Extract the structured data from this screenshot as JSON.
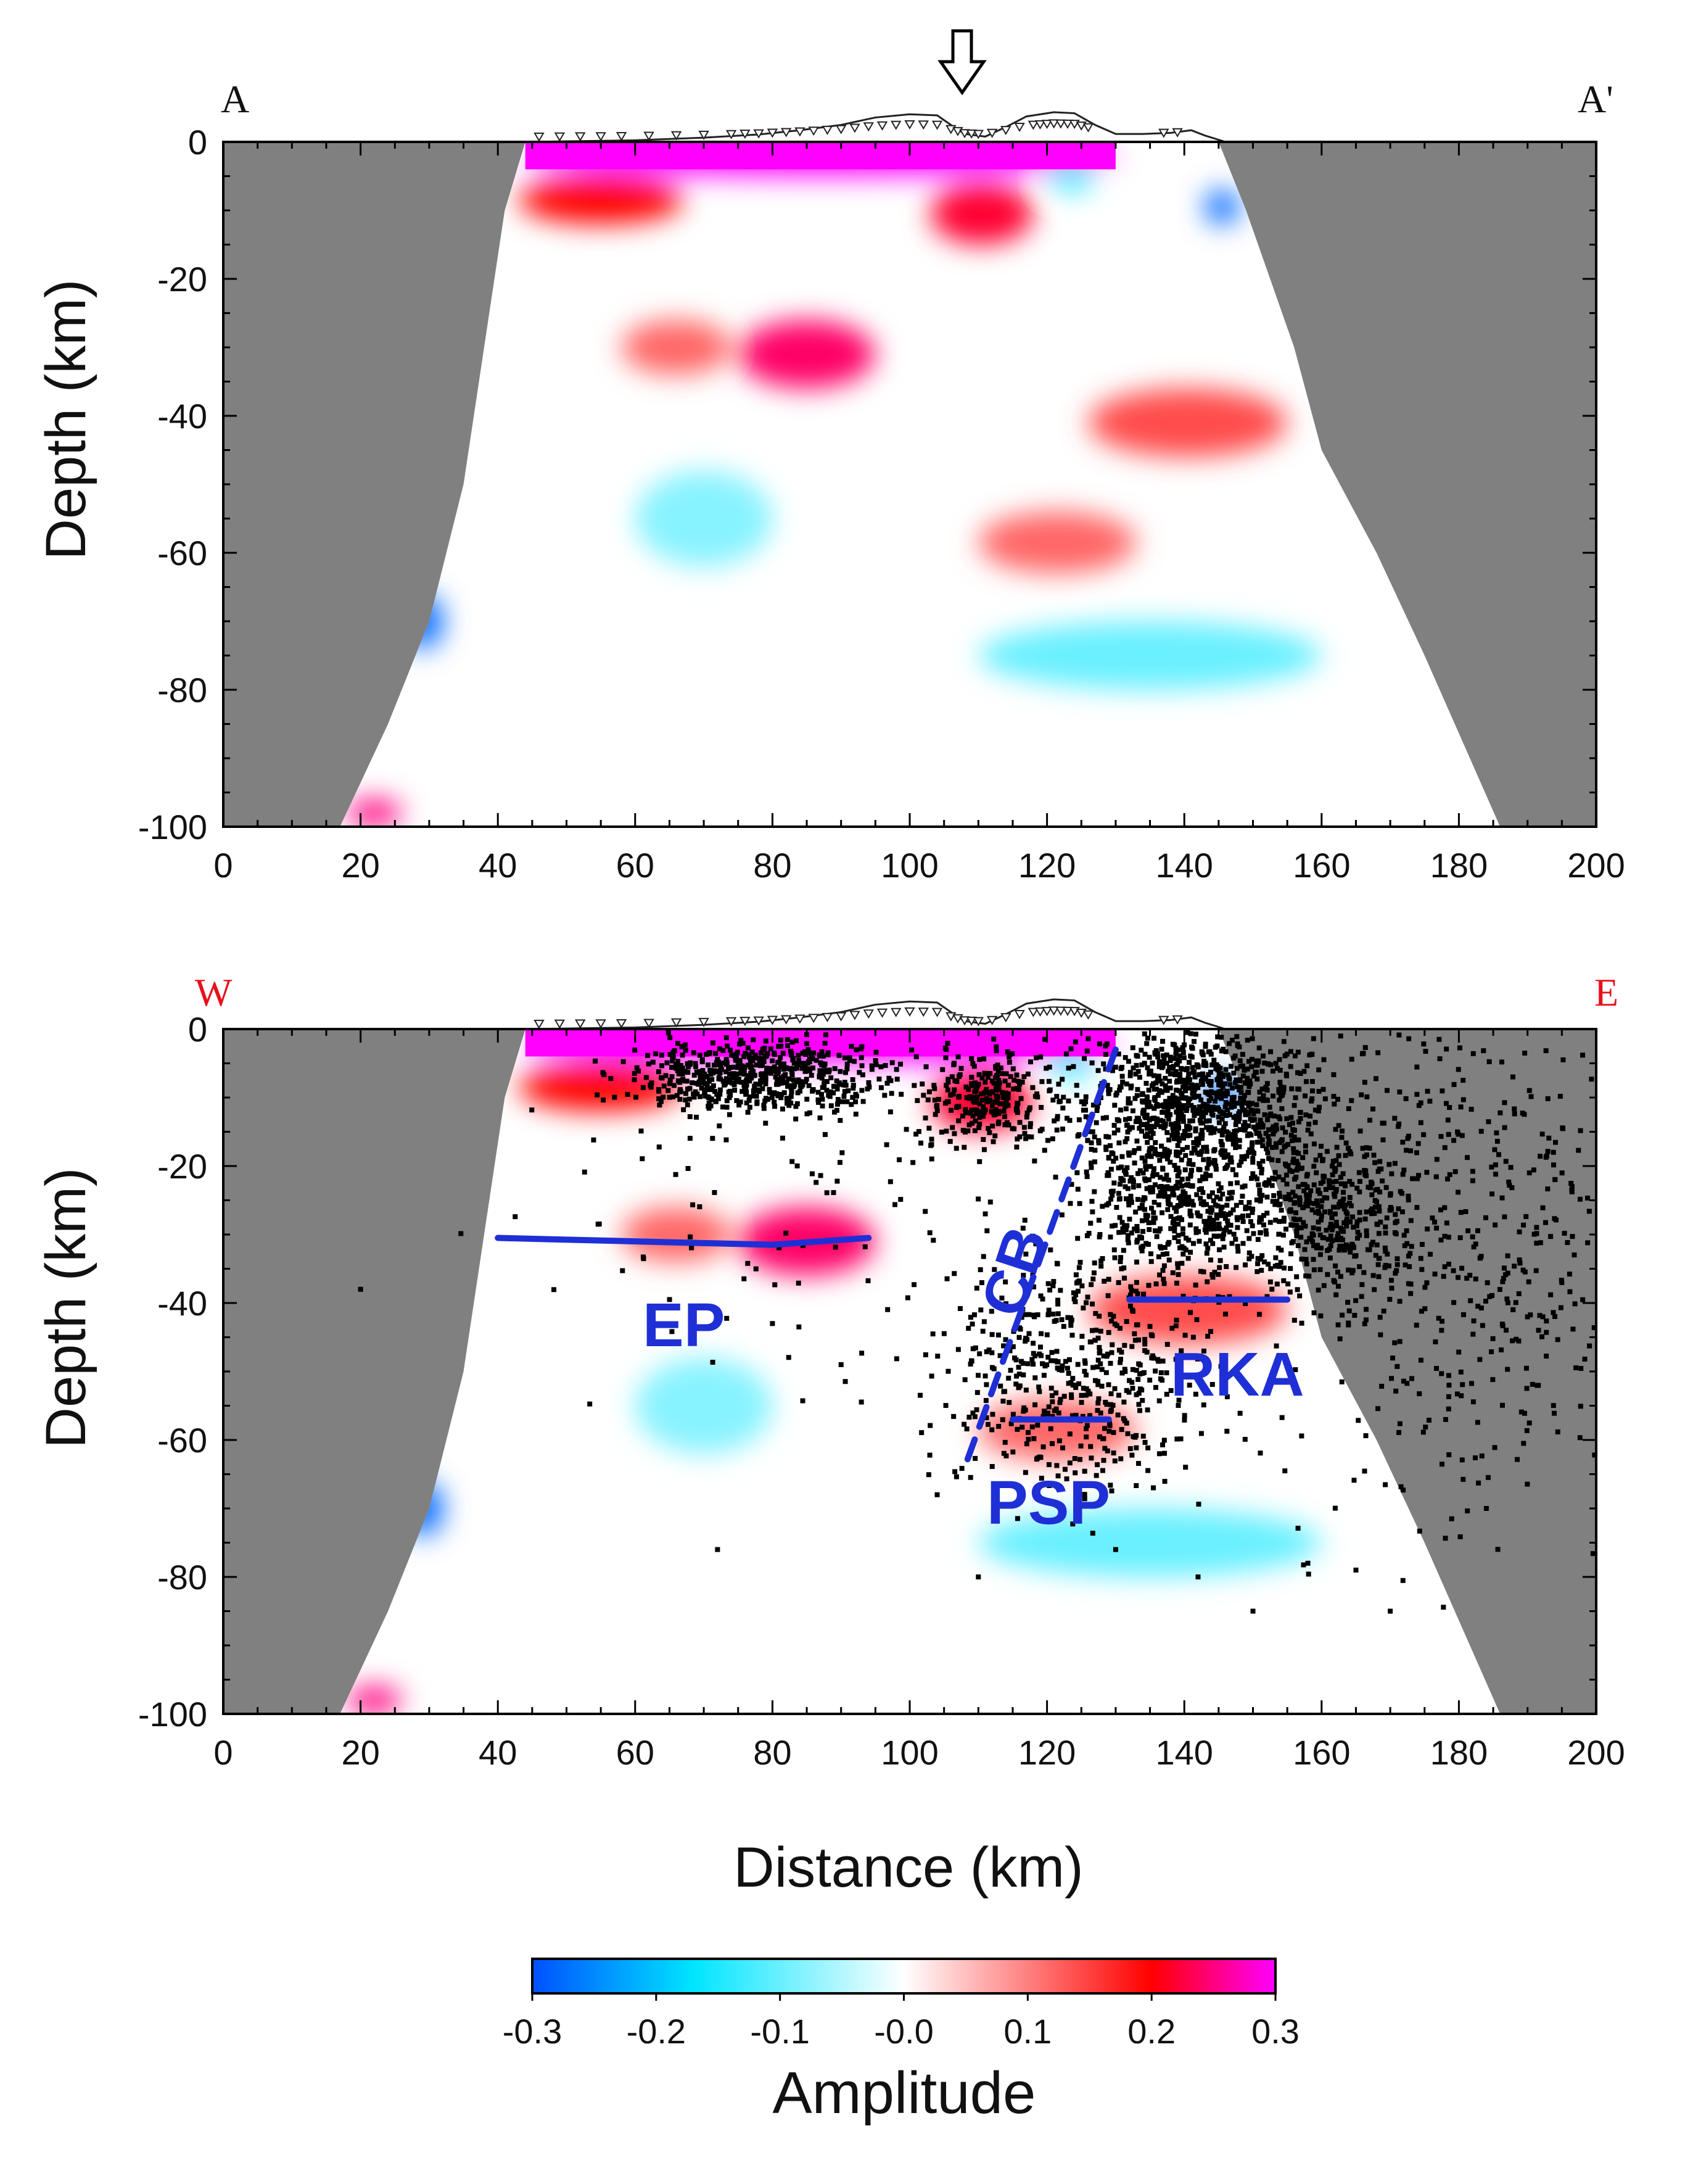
{
  "figure": {
    "panel_top": {
      "left_label": "A",
      "right_label": "A'",
      "marker": "down-arrow"
    },
    "panel_bottom": {
      "left_label": "W",
      "right_label": "E",
      "labels": [
        "EP",
        "CB",
        "RKA",
        "PSP"
      ]
    },
    "colors": {
      "masked": "#808080",
      "neg_strong": "#0050ff",
      "neg_mid": "#00e5ff",
      "zero": "#ffffff",
      "pos_mid": "#ff0000",
      "pos_strong": "#ff00ff",
      "interpretation": "#1f2fd6",
      "left_right_labels_bottom": "#e8101a"
    }
  },
  "chart_data": [
    {
      "type": "heatmap",
      "title": "",
      "xlabel": "",
      "ylabel": "Depth (km)",
      "xlim": [
        0,
        200
      ],
      "ylim": [
        -100,
        0
      ],
      "xticks": [
        0,
        20,
        40,
        60,
        80,
        100,
        120,
        140,
        160,
        180,
        200
      ],
      "yticks": [
        0,
        -20,
        -40,
        -60,
        -80,
        -100
      ],
      "coverage_left_edge": [
        [
          44,
          0
        ],
        [
          41,
          -10
        ],
        [
          38,
          -30
        ],
        [
          35,
          -50
        ],
        [
          30,
          -70
        ],
        [
          24,
          -85
        ],
        [
          17,
          -100
        ]
      ],
      "coverage_right_edge": [
        [
          145,
          0
        ],
        [
          149,
          -10
        ],
        [
          156,
          -30
        ],
        [
          160,
          -45
        ],
        [
          168,
          -60
        ],
        [
          175,
          -75
        ],
        [
          186,
          -100
        ]
      ],
      "anomalies": [
        {
          "x": [
            44,
            130
          ],
          "z": [
            0,
            -5
          ],
          "amp": 0.3
        },
        {
          "x": [
            43,
            67
          ],
          "z": [
            -5,
            -12
          ],
          "amp": 0.2
        },
        {
          "x": [
            103,
            118
          ],
          "z": [
            -6,
            -15
          ],
          "amp": 0.22
        },
        {
          "x": [
            75,
            95
          ],
          "z": [
            -26,
            -36
          ],
          "amp": 0.24
        },
        {
          "x": [
            58,
            74
          ],
          "z": [
            -26,
            -34
          ],
          "amp": 0.12
        },
        {
          "x": [
            126,
            155
          ],
          "z": [
            -36,
            -46
          ],
          "amp": 0.14
        },
        {
          "x": [
            110,
            133
          ],
          "z": [
            -54,
            -63
          ],
          "amp": 0.12
        },
        {
          "x": [
            26,
            32
          ],
          "z": [
            -66,
            -74
          ],
          "amp": -0.28
        },
        {
          "x": [
            18,
            26
          ],
          "z": [
            -96,
            -100
          ],
          "amp": 0.25
        },
        {
          "x": [
            143,
            148
          ],
          "z": [
            -7,
            -12
          ],
          "amp": -0.28
        },
        {
          "x": [
            120,
            127
          ],
          "z": [
            -3,
            -7
          ],
          "amp": -0.15
        },
        {
          "x": [
            60,
            80
          ],
          "z": [
            -48,
            -62
          ],
          "amp": -0.08
        },
        {
          "x": [
            110,
            160
          ],
          "z": [
            -70,
            -80
          ],
          "amp": -0.1
        }
      ]
    },
    {
      "type": "heatmap",
      "title": "",
      "xlabel": "Distance (km)",
      "ylabel": "Depth (km)",
      "xlim": [
        0,
        200
      ],
      "ylim": [
        -100,
        0
      ],
      "xticks": [
        0,
        20,
        40,
        60,
        80,
        100,
        120,
        140,
        160,
        180,
        200
      ],
      "yticks": [
        0,
        -20,
        -40,
        -60,
        -80,
        -100
      ],
      "overlay": "seismicity",
      "interpretation_lines": [
        {
          "name": "EP",
          "x": [
            40,
            60,
            80,
            94
          ],
          "z": [
            -30.5,
            -31,
            -31.5,
            -30.5
          ]
        },
        {
          "name": "RKA",
          "x": [
            132,
            155
          ],
          "z": [
            -39.5,
            -39.5
          ]
        },
        {
          "name": "PSP",
          "x": [
            115,
            129
          ],
          "z": [
            -57,
            -57
          ]
        },
        {
          "name": "CB",
          "x": [
            130,
            108
          ],
          "z": [
            -3,
            -64
          ],
          "style": "dashed"
        }
      ]
    },
    {
      "type": "colorbar",
      "title": "Amplitude",
      "range": [
        -0.3,
        0.3
      ],
      "tick_labels": [
        "-0.3",
        "-0.2",
        "-0.1",
        "-0.0",
        "0.1",
        "0.2",
        "0.3"
      ]
    }
  ]
}
